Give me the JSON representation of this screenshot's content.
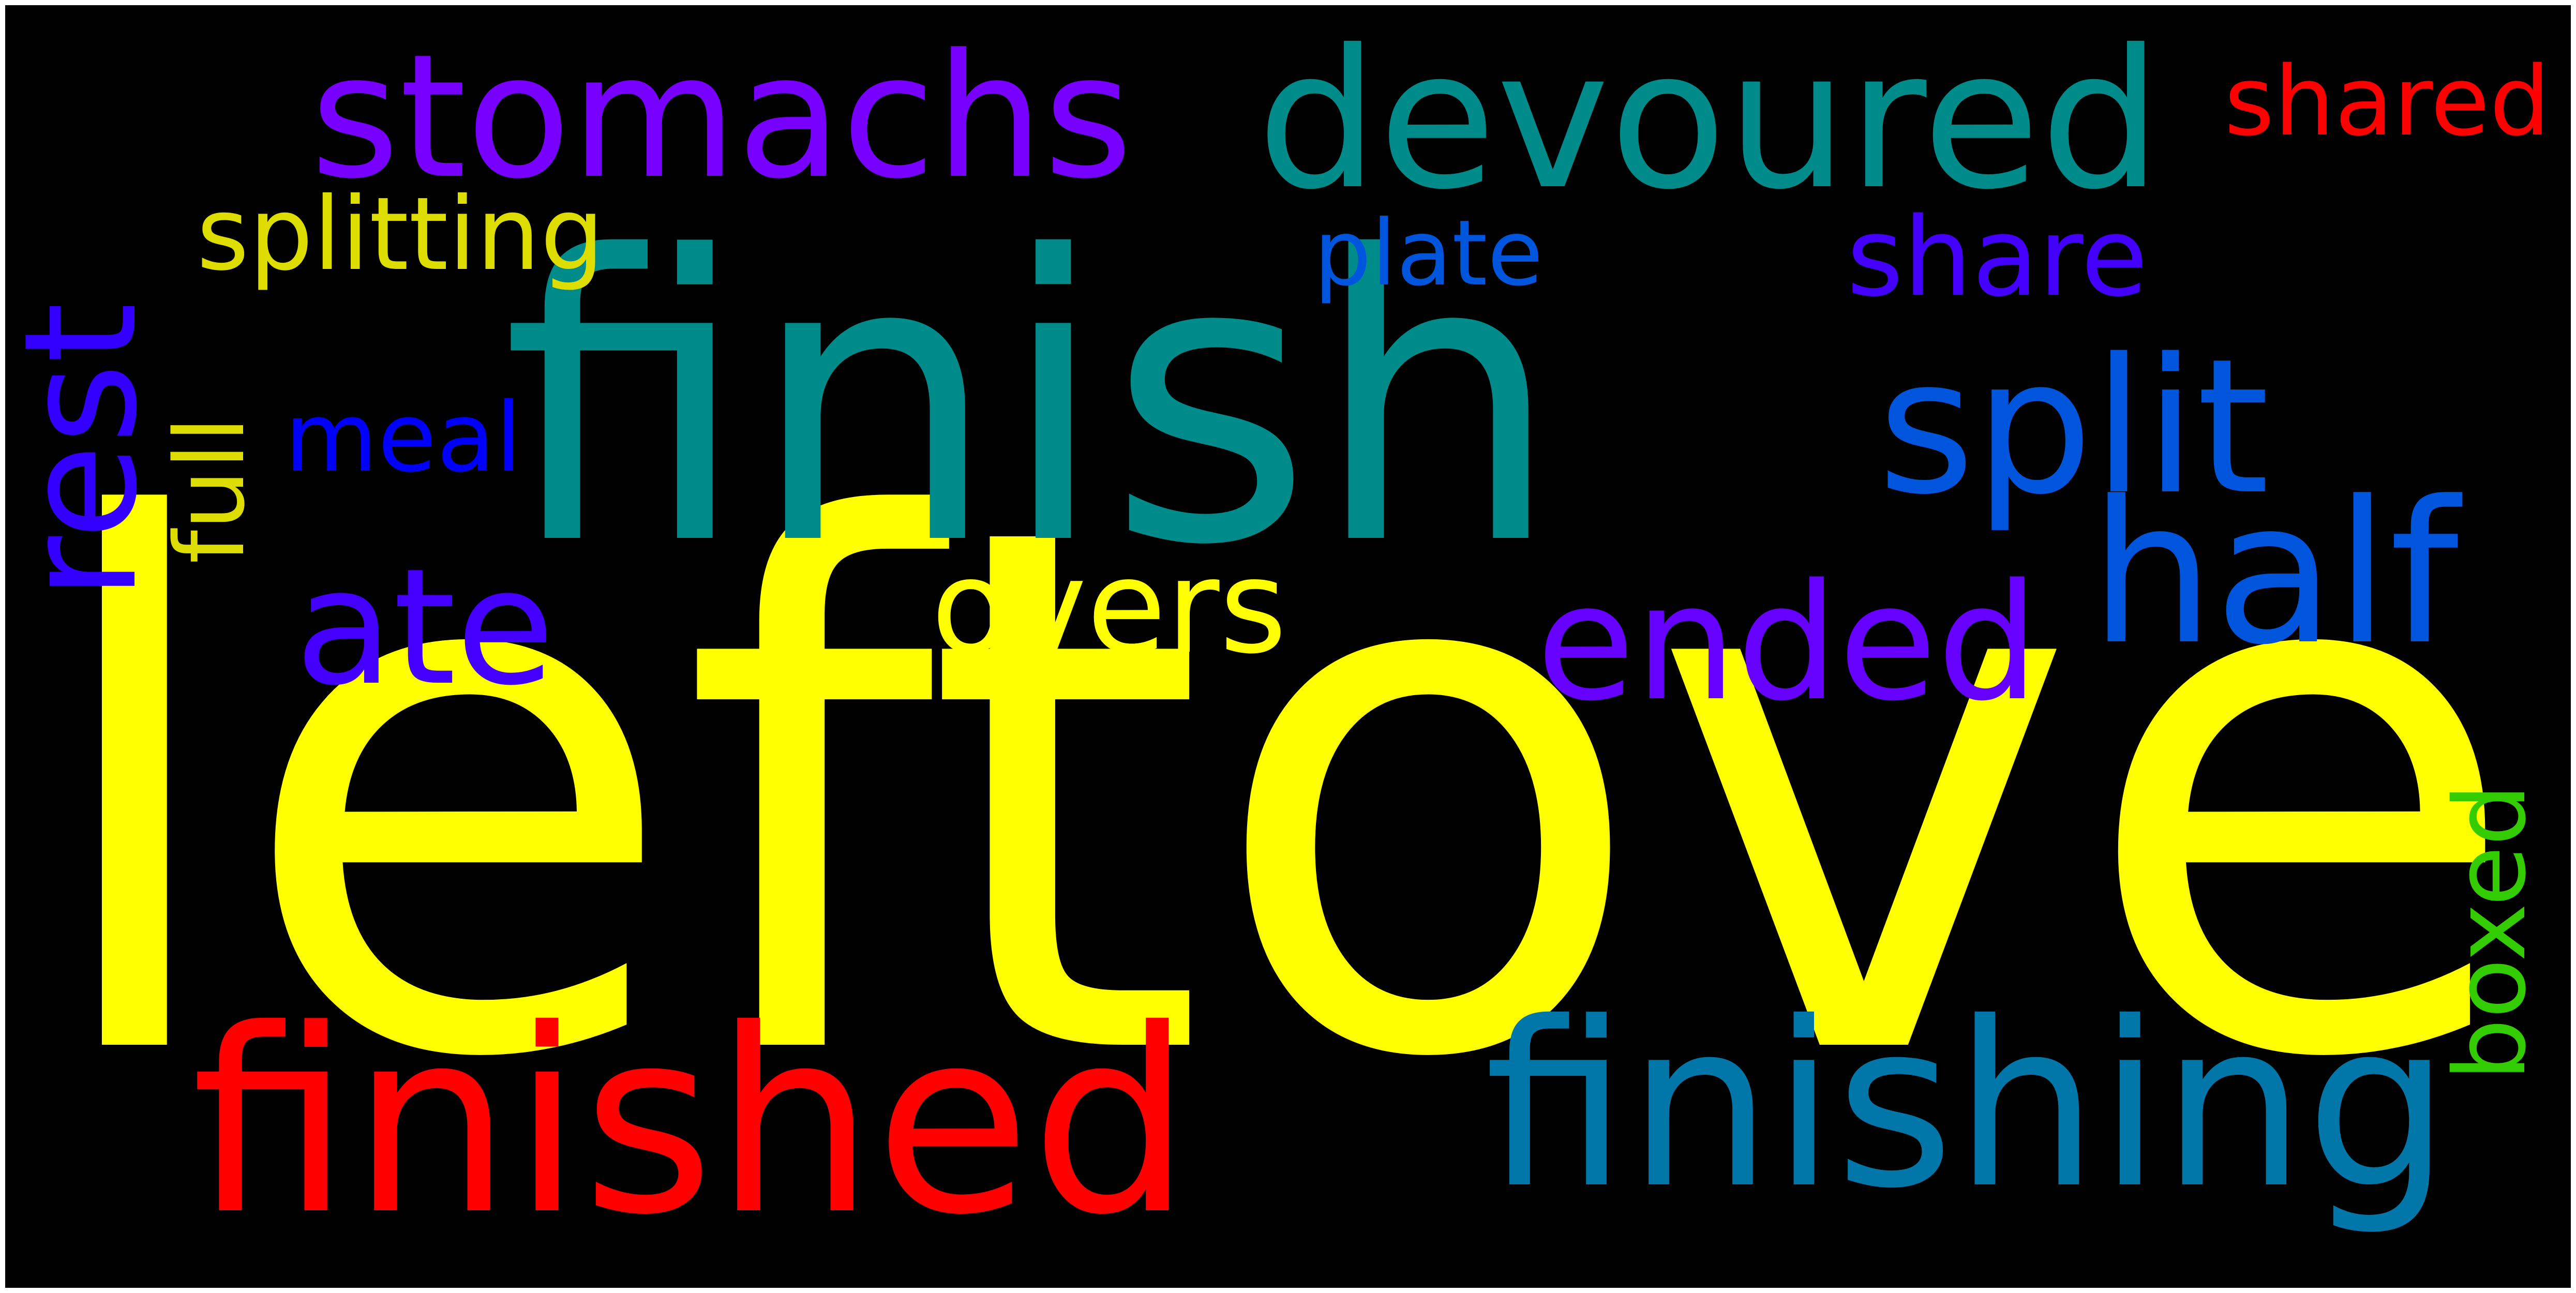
{
  "words": [
    {
      "text": "leftover",
      "color": "#ffff00"
    },
    {
      "text": "finish",
      "color": "#008b8b"
    },
    {
      "text": "finished",
      "color": "#ff0000"
    },
    {
      "text": "finishing",
      "color": "#0077a8"
    },
    {
      "text": "devoured",
      "color": "#008b8b"
    },
    {
      "text": "stomachs",
      "color": "#7700ff"
    },
    {
      "text": "split",
      "color": "#0055dd"
    },
    {
      "text": "half",
      "color": "#0055dd"
    },
    {
      "text": "ended",
      "color": "#6600ff"
    },
    {
      "text": "ate",
      "color": "#4400ff"
    },
    {
      "text": "overs",
      "color": "#ffff00"
    },
    {
      "text": "share",
      "color": "#4400ff"
    },
    {
      "text": "splitting",
      "color": "#dddd00"
    },
    {
      "text": "shared",
      "color": "#ff0000"
    },
    {
      "text": "meal",
      "color": "#0000ff"
    },
    {
      "text": "plate",
      "color": "#0055dd"
    },
    {
      "text": "rest",
      "color": "#3300ff"
    },
    {
      "text": "full",
      "color": "#dddd00"
    },
    {
      "text": "boxed",
      "color": "#33cc00"
    }
  ]
}
